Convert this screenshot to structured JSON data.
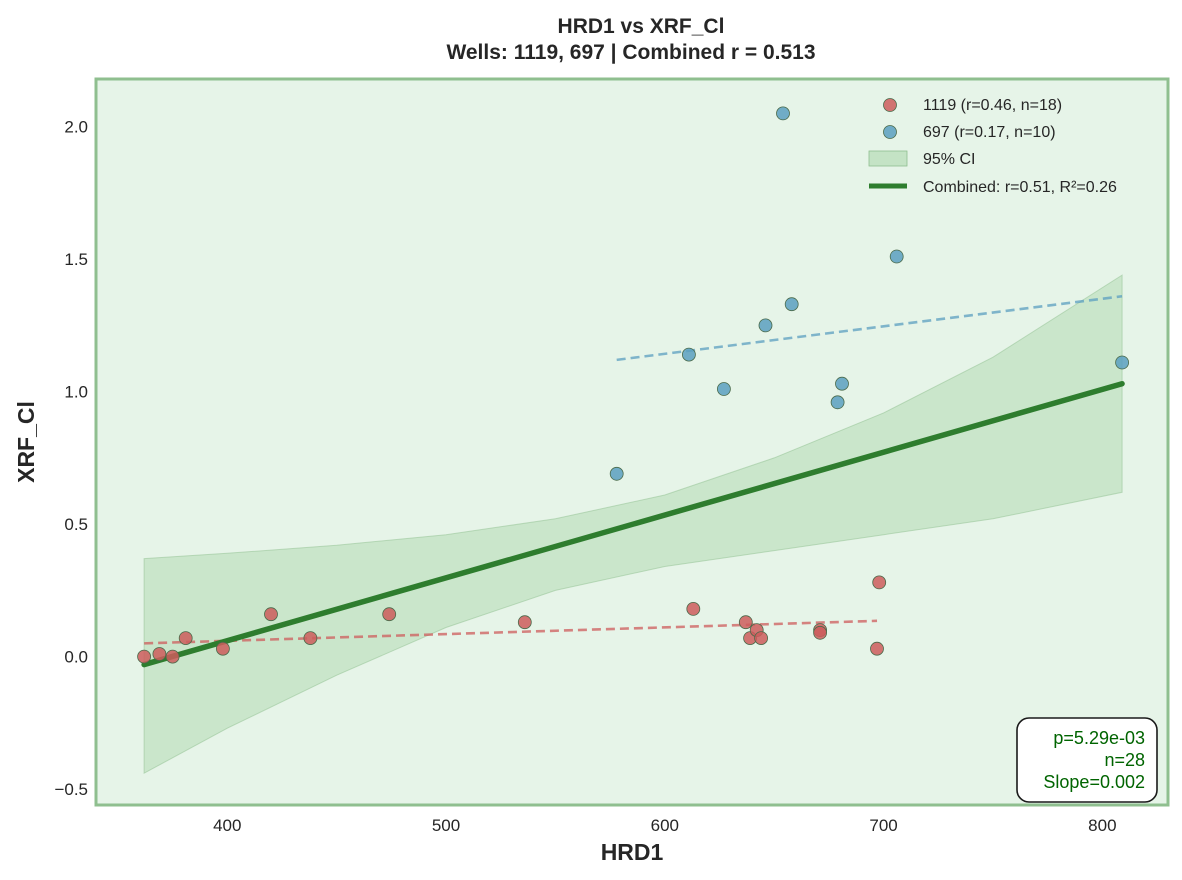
{
  "chart_data": {
    "type": "scatter",
    "title": "HRD1 vs XRF_Cl",
    "subtitle": "Wells: 1119, 697 | Combined r = 0.513",
    "xlabel": "HRD1",
    "ylabel": "XRF_Cl",
    "xlim": [
      340,
      830
    ],
    "ylim": [
      -0.56,
      2.18
    ],
    "xticks": [
      400,
      500,
      600,
      700,
      800
    ],
    "yticks": [
      -0.5,
      0.0,
      0.5,
      1.0,
      1.5,
      2.0
    ],
    "xtick_labels": [
      "400",
      "500",
      "600",
      "700",
      "800"
    ],
    "ytick_labels": [
      "−0.5",
      "0.0",
      "0.5",
      "1.0",
      "1.5",
      "2.0"
    ],
    "grid": false,
    "legend_position": "top-right",
    "background_color": "#e6f4e8",
    "frame_color": "#8fbf8f",
    "series": [
      {
        "name": "1119 (r=0.46, n=18)",
        "color": "#cd5c5c",
        "points": [
          [
            362,
            0.0
          ],
          [
            369,
            0.01
          ],
          [
            375,
            0.0
          ],
          [
            381,
            0.07
          ],
          [
            398,
            0.03
          ],
          [
            420,
            0.16
          ],
          [
            438,
            0.07
          ],
          [
            474,
            0.16
          ],
          [
            536,
            0.13
          ],
          [
            613,
            0.18
          ],
          [
            637,
            0.13
          ],
          [
            639,
            0.07
          ],
          [
            642,
            0.1
          ],
          [
            644,
            0.07
          ],
          [
            671,
            0.1
          ],
          [
            671,
            0.09
          ],
          [
            697,
            0.03
          ],
          [
            698,
            0.28
          ]
        ],
        "trend": [
          [
            362,
            0.05
          ],
          [
            697,
            0.135
          ]
        ]
      },
      {
        "name": "697 (r=0.17, n=10)",
        "color": "#5b9fc0",
        "points": [
          [
            578,
            0.69
          ],
          [
            611,
            1.14
          ],
          [
            627,
            1.01
          ],
          [
            646,
            1.25
          ],
          [
            654,
            2.05
          ],
          [
            658,
            1.33
          ],
          [
            679,
            0.96
          ],
          [
            681,
            1.03
          ],
          [
            706,
            1.51
          ],
          [
            809,
            1.11
          ]
        ],
        "trend": [
          [
            578,
            1.12
          ],
          [
            809,
            1.36
          ]
        ]
      }
    ],
    "combined_fit": {
      "name": "Combined: r=0.51, R²=0.26",
      "color": "#2e7d2e",
      "line": [
        [
          362,
          -0.03
        ],
        [
          809,
          1.03
        ]
      ]
    },
    "confidence_band": {
      "name": "95% CI",
      "color": "#a8d5a8",
      "x": [
        362,
        400,
        450,
        500,
        550,
        600,
        650,
        700,
        750,
        809
      ],
      "upper": [
        0.37,
        0.39,
        0.42,
        0.46,
        0.52,
        0.61,
        0.75,
        0.92,
        1.13,
        1.44
      ],
      "lower": [
        -0.44,
        -0.27,
        -0.07,
        0.11,
        0.25,
        0.34,
        0.4,
        0.46,
        0.52,
        0.62
      ]
    },
    "stats_box": [
      "p=5.29e-03",
      "n=28",
      "Slope=0.002"
    ]
  }
}
